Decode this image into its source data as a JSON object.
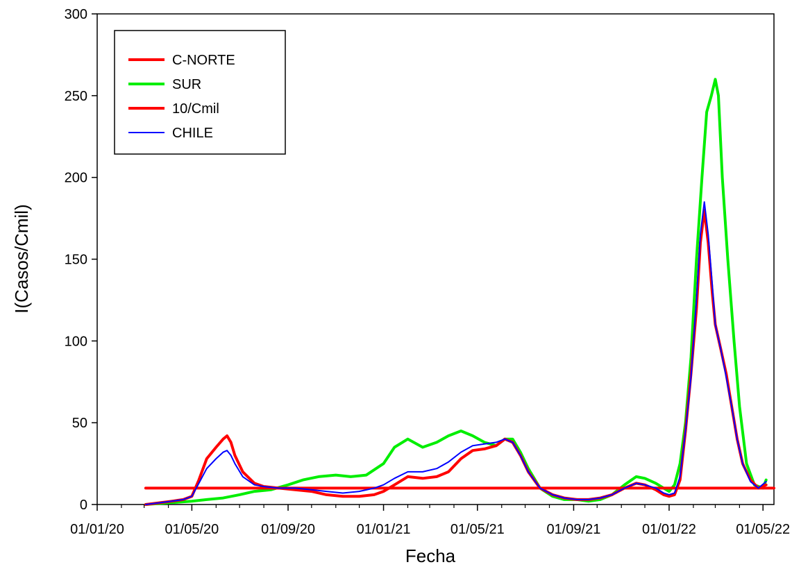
{
  "chart_data": {
    "type": "line",
    "xlabel": "Fecha",
    "ylabel": "I(Casos/Cmil)",
    "ylim": [
      0,
      300
    ],
    "xlim": [
      "2020-01-01",
      "2022-05-15"
    ],
    "yticks": [
      0,
      50,
      100,
      150,
      200,
      250,
      300
    ],
    "xticks": [
      {
        "date": "2020-01-01",
        "label": "01/01/20"
      },
      {
        "date": "2020-05-01",
        "label": "01/05/20"
      },
      {
        "date": "2020-09-01",
        "label": "01/09/20"
      },
      {
        "date": "2021-01-01",
        "label": "01/01/21"
      },
      {
        "date": "2021-05-01",
        "label": "01/05/21"
      },
      {
        "date": "2021-09-01",
        "label": "01/09/21"
      },
      {
        "date": "2022-01-01",
        "label": "01/01/22"
      },
      {
        "date": "2022-05-01",
        "label": "01/05/22"
      }
    ],
    "legend_position": "top-left",
    "grid": false,
    "series": [
      {
        "name": "C-NORTE",
        "color": "#ff0000",
        "width": 4,
        "x": [
          "2020-03-03",
          "2020-03-20",
          "2020-04-05",
          "2020-04-20",
          "2020-05-01",
          "2020-05-10",
          "2020-05-20",
          "2020-06-01",
          "2020-06-10",
          "2020-06-15",
          "2020-06-20",
          "2020-06-25",
          "2020-07-05",
          "2020-07-20",
          "2020-08-01",
          "2020-08-20",
          "2020-09-10",
          "2020-10-01",
          "2020-10-20",
          "2020-11-10",
          "2020-12-01",
          "2020-12-20",
          "2021-01-01",
          "2021-01-15",
          "2021-02-01",
          "2021-02-20",
          "2021-03-10",
          "2021-03-25",
          "2021-04-10",
          "2021-04-25",
          "2021-05-10",
          "2021-05-25",
          "2021-06-05",
          "2021-06-15",
          "2021-06-25",
          "2021-07-05",
          "2021-07-20",
          "2021-08-05",
          "2021-08-20",
          "2021-09-05",
          "2021-09-20",
          "2021-10-05",
          "2021-10-20",
          "2021-11-05",
          "2021-11-20",
          "2021-12-01",
          "2021-12-15",
          "2021-12-25",
          "2022-01-01",
          "2022-01-08",
          "2022-01-15",
          "2022-01-22",
          "2022-01-29",
          "2022-02-05",
          "2022-02-10",
          "2022-02-15",
          "2022-02-20",
          "2022-02-25",
          "2022-03-01",
          "2022-03-08",
          "2022-03-15",
          "2022-03-22",
          "2022-03-29",
          "2022-04-05",
          "2022-04-15",
          "2022-04-25",
          "2022-05-05"
        ],
        "y": [
          0,
          1,
          2,
          3,
          5,
          15,
          28,
          35,
          40,
          42,
          38,
          30,
          20,
          13,
          11,
          10,
          9,
          8,
          6,
          5,
          5,
          6,
          8,
          12,
          17,
          16,
          17,
          20,
          28,
          33,
          34,
          36,
          40,
          38,
          30,
          20,
          10,
          6,
          4,
          3,
          3,
          4,
          6,
          10,
          13,
          12,
          9,
          6,
          5,
          6,
          15,
          45,
          80,
          120,
          160,
          180,
          160,
          130,
          110,
          95,
          80,
          60,
          40,
          25,
          15,
          10,
          12
        ]
      },
      {
        "name": "SUR",
        "color": "#00ee00",
        "width": 4,
        "x": [
          "2020-03-03",
          "2020-04-01",
          "2020-05-01",
          "2020-05-20",
          "2020-06-10",
          "2020-07-01",
          "2020-07-20",
          "2020-08-10",
          "2020-09-01",
          "2020-09-20",
          "2020-10-10",
          "2020-11-01",
          "2020-11-20",
          "2020-12-10",
          "2021-01-01",
          "2021-01-15",
          "2021-02-01",
          "2021-02-20",
          "2021-03-10",
          "2021-03-25",
          "2021-04-10",
          "2021-04-25",
          "2021-05-10",
          "2021-05-25",
          "2021-06-05",
          "2021-06-15",
          "2021-06-25",
          "2021-07-05",
          "2021-07-20",
          "2021-08-05",
          "2021-08-20",
          "2021-09-05",
          "2021-09-20",
          "2021-10-05",
          "2021-10-20",
          "2021-11-05",
          "2021-11-20",
          "2021-12-01",
          "2021-12-15",
          "2021-12-25",
          "2022-01-01",
          "2022-01-08",
          "2022-01-15",
          "2022-01-22",
          "2022-01-29",
          "2022-02-05",
          "2022-02-12",
          "2022-02-18",
          "2022-02-24",
          "2022-03-01",
          "2022-03-05",
          "2022-03-10",
          "2022-03-17",
          "2022-03-25",
          "2022-04-01",
          "2022-04-10",
          "2022-04-20",
          "2022-05-01",
          "2022-05-05"
        ],
        "y": [
          0,
          1,
          2,
          3,
          4,
          6,
          8,
          9,
          12,
          15,
          17,
          18,
          17,
          18,
          25,
          35,
          40,
          35,
          38,
          42,
          45,
          42,
          38,
          36,
          40,
          40,
          32,
          22,
          10,
          5,
          3,
          3,
          2,
          3,
          6,
          12,
          17,
          16,
          13,
          10,
          8,
          12,
          25,
          50,
          90,
          150,
          200,
          240,
          250,
          260,
          250,
          200,
          150,
          100,
          60,
          25,
          12,
          10,
          15
        ]
      },
      {
        "name": "10/Cmil",
        "color": "#ff0000",
        "width": 4,
        "x": [
          "2020-03-03",
          "2022-05-15"
        ],
        "y": [
          10,
          10
        ]
      },
      {
        "name": "CHILE",
        "color": "#0000ff",
        "width": 2,
        "x": [
          "2020-03-03",
          "2020-03-20",
          "2020-04-05",
          "2020-04-20",
          "2020-05-01",
          "2020-05-10",
          "2020-05-20",
          "2020-06-01",
          "2020-06-10",
          "2020-06-15",
          "2020-06-20",
          "2020-06-25",
          "2020-07-05",
          "2020-07-20",
          "2020-08-01",
          "2020-08-20",
          "2020-09-10",
          "2020-10-01",
          "2020-10-20",
          "2020-11-10",
          "2020-12-01",
          "2020-12-20",
          "2021-01-01",
          "2021-01-15",
          "2021-02-01",
          "2021-02-20",
          "2021-03-10",
          "2021-03-25",
          "2021-04-10",
          "2021-04-25",
          "2021-05-10",
          "2021-05-25",
          "2021-06-05",
          "2021-06-15",
          "2021-06-25",
          "2021-07-05",
          "2021-07-20",
          "2021-08-05",
          "2021-08-20",
          "2021-09-05",
          "2021-09-20",
          "2021-10-05",
          "2021-10-20",
          "2021-11-05",
          "2021-11-20",
          "2021-12-01",
          "2021-12-15",
          "2021-12-25",
          "2022-01-01",
          "2022-01-08",
          "2022-01-15",
          "2022-01-22",
          "2022-01-29",
          "2022-02-05",
          "2022-02-10",
          "2022-02-15",
          "2022-02-20",
          "2022-02-25",
          "2022-03-01",
          "2022-03-08",
          "2022-03-15",
          "2022-03-22",
          "2022-03-29",
          "2022-04-05",
          "2022-04-15",
          "2022-04-25",
          "2022-05-05"
        ],
        "y": [
          0,
          1,
          2,
          3,
          5,
          13,
          22,
          28,
          32,
          33,
          30,
          25,
          17,
          12,
          11,
          10,
          10,
          9,
          8,
          7,
          8,
          10,
          12,
          16,
          20,
          20,
          22,
          26,
          32,
          36,
          37,
          38,
          40,
          38,
          30,
          20,
          10,
          6,
          4,
          3,
          3,
          4,
          6,
          10,
          13,
          12,
          10,
          7,
          6,
          7,
          17,
          45,
          78,
          125,
          165,
          185,
          165,
          135,
          110,
          95,
          78,
          60,
          40,
          25,
          14,
          10,
          14
        ]
      }
    ]
  }
}
